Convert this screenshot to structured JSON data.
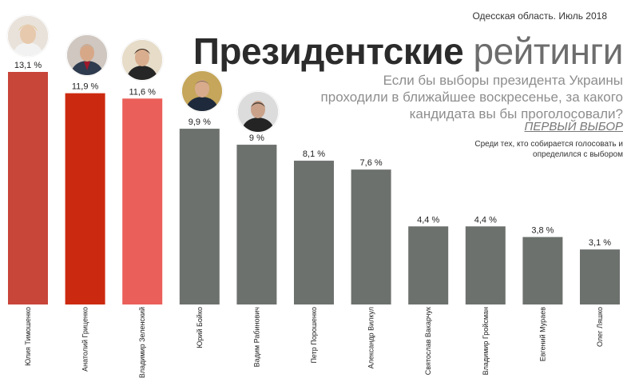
{
  "header": {
    "region": "Одесская область. Июль 2018",
    "title_bold": "Президентские",
    "title_light": "рейтинги",
    "question": "Если бы выборы президента Украины проходили в ближайшее воскресенье, за какого кандидата вы бы проголосовали?",
    "first_choice": "ПЕРВЫЙ ВЫБОР",
    "note": "Среди тех, кто собирается голосовать и определился с выбором"
  },
  "colors": {
    "top_1": "#c8453a",
    "top_2": "#cc2a10",
    "top_3": "#ea5f59",
    "other": "#6d716e"
  },
  "chart_data": {
    "type": "bar",
    "categories": [
      "Юлия Тимошенко",
      "Анатолий Гриценко",
      "Владимир Зеленский",
      "Юрий Бойко",
      "Вадим Рабинович",
      "Петр Порошенко",
      "Александр Вилкул",
      "Святослав Вакарчук",
      "Владимир Гройсман",
      "Евгений Мураев",
      "Олег Ляшко"
    ],
    "values": [
      13.1,
      11.9,
      11.6,
      9.9,
      9.0,
      8.1,
      7.6,
      4.4,
      4.4,
      3.8,
      3.1
    ],
    "value_labels": [
      "13,1 %",
      "11,9 %",
      "11,6 %",
      "9,9 %",
      "9 %",
      "8,1 %",
      "7,6 %",
      "4,4 %",
      "4,4 %",
      "3,8 %",
      "3,1 %"
    ],
    "ylim": [
      0,
      13.1
    ],
    "title": "",
    "xlabel": "",
    "ylabel": ""
  }
}
